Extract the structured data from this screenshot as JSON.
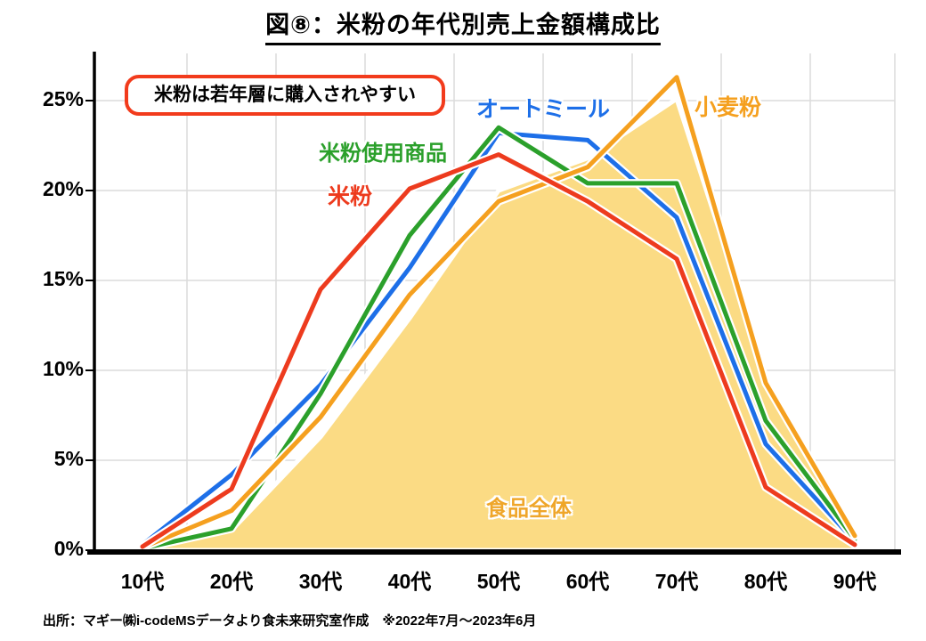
{
  "title": "図⑧：米粉の年代別売上金額構成比",
  "callout_text": "米粉は若年層に購入されやすい",
  "source_note": "出所：マギー㈱i-codeMSデータより食未来研究室作成　※2022年7月～2023年6月",
  "colors": {
    "callout_border": "#F23B1C",
    "grid": "#DCDCDC",
    "axis": "#000000",
    "area_label": "#EFA62A"
  },
  "chart_data": {
    "type": "line",
    "title": "図⑧：米粉の年代別売上金額構成比",
    "categories": [
      "10代",
      "20代",
      "30代",
      "40代",
      "50代",
      "60代",
      "70代",
      "80代",
      "90代"
    ],
    "yticks": [
      "0%",
      "5%",
      "10%",
      "15%",
      "20%",
      "25%"
    ],
    "ylim": [
      0,
      27
    ],
    "grid": true,
    "legend_position": "inline-annotations",
    "series": [
      {
        "name": "食品全体",
        "kind": "area",
        "color": "#FBDB84",
        "values": [
          0.05,
          1.1,
          6.3,
          12.9,
          20.0,
          21.8,
          25.1,
          9.8,
          0.25
        ]
      },
      {
        "name": "オートミール",
        "kind": "line",
        "color": "#1D6FE8",
        "values": [
          0.3,
          4.2,
          9.2,
          15.7,
          23.2,
          22.8,
          18.5,
          5.9,
          0.5
        ]
      },
      {
        "name": "米粉使用商品",
        "kind": "line",
        "color": "#2BA02B",
        "values": [
          0.1,
          1.2,
          8.7,
          17.5,
          23.5,
          20.4,
          20.4,
          7.2,
          0.6
        ]
      },
      {
        "name": "小麦粉",
        "kind": "line",
        "color": "#F5A01F",
        "values": [
          0.15,
          2.2,
          7.4,
          14.2,
          19.4,
          21.3,
          26.3,
          9.3,
          0.8
        ]
      },
      {
        "name": "米粉",
        "kind": "line",
        "color": "#ED3B1E",
        "values": [
          0.2,
          3.4,
          14.5,
          20.1,
          22.0,
          19.4,
          16.2,
          3.5,
          0.3
        ]
      }
    ]
  }
}
